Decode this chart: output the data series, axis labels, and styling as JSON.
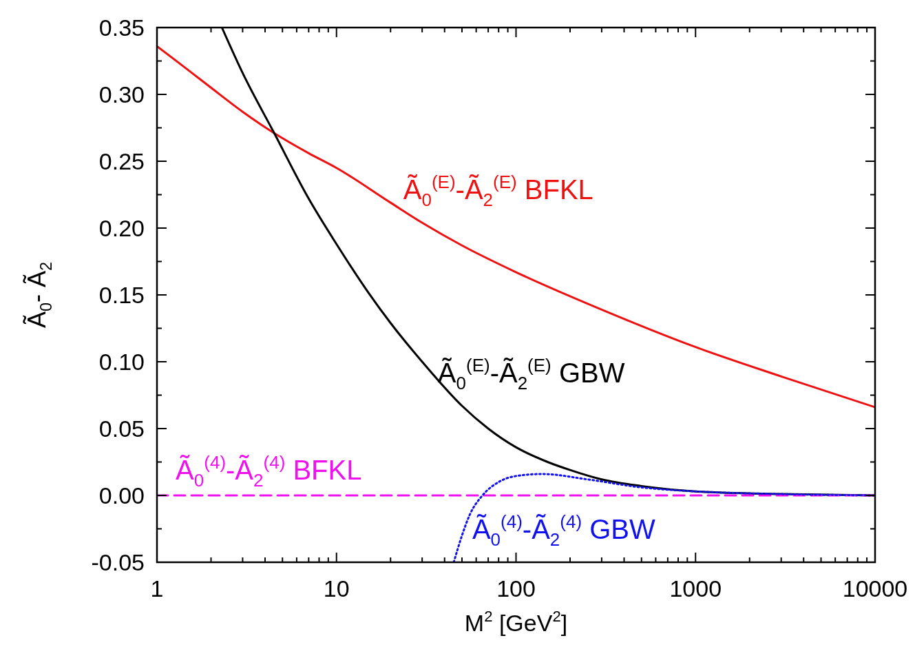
{
  "chart_data": {
    "type": "line",
    "xlabel": "M$^{2}$ [GeV$^{2}$]",
    "ylabel": "Ã$_{0}$- Ã$_{2}$",
    "log": "x",
    "xlim": [
      1,
      10000
    ],
    "ylim": [
      -0.05,
      0.35
    ],
    "xticks": [
      1,
      {
        "value": 2,
        "label": null
      },
      {
        "value": 3,
        "label": null
      },
      {
        "value": 4,
        "label": null
      },
      {
        "value": 5,
        "label": null
      },
      {
        "value": 6,
        "label": null
      },
      {
        "value": 7,
        "label": null
      },
      {
        "value": 8,
        "label": null
      },
      {
        "value": 9,
        "label": null
      },
      10,
      {
        "value": 20,
        "label": null
      },
      {
        "value": 30,
        "label": null
      },
      {
        "value": 40,
        "label": null
      },
      {
        "value": 50,
        "label": null
      },
      {
        "value": 60,
        "label": null
      },
      {
        "value": 70,
        "label": null
      },
      {
        "value": 80,
        "label": null
      },
      {
        "value": 90,
        "label": null
      },
      100,
      {
        "value": 200,
        "label": null
      },
      {
        "value": 300,
        "label": null
      },
      {
        "value": 400,
        "label": null
      },
      {
        "value": 500,
        "label": null
      },
      {
        "value": 600,
        "label": null
      },
      {
        "value": 700,
        "label": null
      },
      {
        "value": 800,
        "label": null
      },
      {
        "value": 900,
        "label": null
      },
      1000,
      {
        "value": 2000,
        "label": null
      },
      {
        "value": 3000,
        "label": null
      },
      {
        "value": 4000,
        "label": null
      },
      {
        "value": 5000,
        "label": null
      },
      {
        "value": 6000,
        "label": null
      },
      {
        "value": 7000,
        "label": null
      },
      {
        "value": 8000,
        "label": null
      },
      {
        "value": 9000,
        "label": null
      },
      10000
    ],
    "yticks": [
      {
        "value": -0.05,
        "label": "-0.05"
      },
      {
        "value": -0.025,
        "label": null
      },
      {
        "value": 0,
        "label": "0.00"
      },
      {
        "value": 0.025,
        "label": null
      },
      {
        "value": 0.05,
        "label": "0.05"
      },
      {
        "value": 0.075,
        "label": null
      },
      {
        "value": 0.1,
        "label": "0.10"
      },
      {
        "value": 0.125,
        "label": null
      },
      {
        "value": 0.15,
        "label": "0.15"
      },
      {
        "value": 0.175,
        "label": null
      },
      {
        "value": 0.2,
        "label": "0.20"
      },
      {
        "value": 0.225,
        "label": null
      },
      {
        "value": 0.25,
        "label": "0.25"
      },
      {
        "value": 0.275,
        "label": null
      },
      {
        "value": 0.3,
        "label": "0.30"
      },
      {
        "value": 0.325,
        "label": null
      },
      {
        "value": 0.35,
        "label": "0.35"
      }
    ],
    "grid": false,
    "series": [
      {
        "color": "#ee1111",
        "line_style": "solid",
        "x": [
          1,
          1.5,
          2,
          3,
          4.5,
          7,
          10,
          20,
          30,
          50,
          100,
          300,
          1000,
          3000,
          10000
        ],
        "values": [
          0.336,
          0.318,
          0.305,
          0.287,
          0.271,
          0.256,
          0.245,
          0.219,
          0.204,
          0.187,
          0.167,
          0.139,
          0.111,
          0.089,
          0.066
        ]
      },
      {
        "color": "#000000",
        "line_style": "solid",
        "x": [
          2.3,
          3,
          4.5,
          7,
          10,
          15,
          20,
          30,
          50,
          70,
          100,
          150,
          200,
          300,
          500,
          1000,
          3000,
          10000
        ],
        "values": [
          0.35,
          0.316,
          0.271,
          0.222,
          0.188,
          0.152,
          0.129,
          0.1,
          0.067,
          0.05,
          0.036,
          0.025,
          0.019,
          0.012,
          0.007,
          0.003,
          0.001,
          0
        ]
      },
      {
        "color": "#ee11ee",
        "line_style": "dashed",
        "x": [
          1,
          10000
        ],
        "values": [
          0,
          0
        ]
      },
      {
        "color": "#1111ee",
        "line_style": "dotted",
        "x": [
          45,
          50,
          55,
          65,
          80,
          100,
          140,
          250,
          500,
          1000,
          3000,
          10000
        ],
        "values": [
          -0.05,
          -0.03,
          -0.015,
          0,
          0.01,
          0.0145,
          0.016,
          0.012,
          0.006,
          0.003,
          0.001,
          0
        ]
      }
    ],
    "annotations": [
      "Ã$_{0}$$^{(E)}$-Ã$_{2}$$^{(E)}$ BFKL",
      "Ã$_{0}$$^{(E)}$-Ã$_{2}$$^{(E)}$ GBW",
      "Ã$_{0}$$^{(4)}$-Ã$_{2}$$^{(4)}$ BFKL",
      "Ã$_{0}$$^{(4)}$-Ã$_{2}$$^{(4)}$ GBW"
    ]
  }
}
